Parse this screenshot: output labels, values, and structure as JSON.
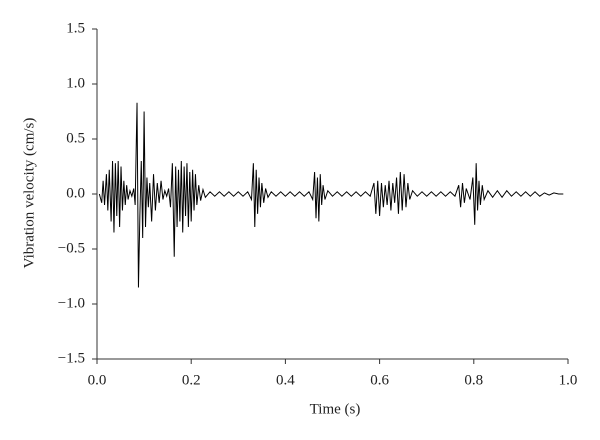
{
  "chart_data": {
    "type": "line",
    "x_label": "Time (s)",
    "y_label": "Vibration velocity (cm/s)",
    "color": "#000000",
    "x": [
      0.005,
      0.01,
      0.013,
      0.016,
      0.02,
      0.023,
      0.026,
      0.03,
      0.033,
      0.036,
      0.039,
      0.042,
      0.045,
      0.048,
      0.051,
      0.054,
      0.057,
      0.06,
      0.063,
      0.066,
      0.07,
      0.074,
      0.078,
      0.081,
      0.085,
      0.088,
      0.091,
      0.094,
      0.097,
      0.1,
      0.103,
      0.106,
      0.109,
      0.112,
      0.116,
      0.12,
      0.124,
      0.128,
      0.132,
      0.136,
      0.14,
      0.144,
      0.148,
      0.152,
      0.156,
      0.16,
      0.164,
      0.167,
      0.17,
      0.173,
      0.176,
      0.179,
      0.182,
      0.185,
      0.188,
      0.191,
      0.194,
      0.197,
      0.2,
      0.203,
      0.206,
      0.209,
      0.212,
      0.216,
      0.22,
      0.225,
      0.23,
      0.24,
      0.25,
      0.26,
      0.27,
      0.28,
      0.29,
      0.3,
      0.31,
      0.32,
      0.328,
      0.332,
      0.335,
      0.338,
      0.341,
      0.344,
      0.347,
      0.35,
      0.354,
      0.358,
      0.363,
      0.37,
      0.38,
      0.39,
      0.4,
      0.41,
      0.42,
      0.43,
      0.44,
      0.45,
      0.458,
      0.462,
      0.465,
      0.468,
      0.471,
      0.474,
      0.477,
      0.48,
      0.484,
      0.49,
      0.5,
      0.51,
      0.52,
      0.53,
      0.54,
      0.55,
      0.56,
      0.57,
      0.58,
      0.588,
      0.592,
      0.596,
      0.6,
      0.604,
      0.608,
      0.612,
      0.616,
      0.62,
      0.624,
      0.628,
      0.632,
      0.636,
      0.64,
      0.644,
      0.648,
      0.652,
      0.656,
      0.66,
      0.664,
      0.67,
      0.68,
      0.69,
      0.7,
      0.71,
      0.72,
      0.73,
      0.74,
      0.75,
      0.76,
      0.768,
      0.772,
      0.776,
      0.78,
      0.784,
      0.792,
      0.798,
      0.802,
      0.805,
      0.808,
      0.811,
      0.814,
      0.818,
      0.822,
      0.83,
      0.84,
      0.85,
      0.86,
      0.87,
      0.88,
      0.89,
      0.9,
      0.91,
      0.92,
      0.93,
      0.94,
      0.95,
      0.96,
      0.97,
      0.98,
      0.99
    ],
    "values": [
      0,
      -0.08,
      0.12,
      -0.1,
      0.18,
      -0.15,
      0.22,
      -0.25,
      0.3,
      -0.35,
      0.28,
      -0.2,
      0.3,
      -0.3,
      0.25,
      -0.15,
      0.12,
      -0.1,
      0.08,
      -0.05,
      0.03,
      -0.02,
      0.05,
      -0.1,
      0.83,
      -0.85,
      -0.2,
      0.3,
      -0.4,
      0.75,
      -0.3,
      0.15,
      -0.12,
      0.1,
      -0.25,
      0.18,
      -0.15,
      0.1,
      -0.08,
      0.12,
      -0.05,
      0.03,
      -0.02,
      0.05,
      -0.12,
      0.28,
      -0.57,
      0.25,
      -0.3,
      0.22,
      -0.25,
      0.3,
      -0.35,
      0.25,
      -0.2,
      0.28,
      -0.3,
      0.2,
      -0.25,
      0.22,
      -0.15,
      0.18,
      -0.1,
      0.08,
      -0.06,
      0.04,
      -0.03,
      0.02,
      -0.02,
      0.02,
      -0.02,
      0.02,
      -0.02,
      0.02,
      -0.02,
      0.02,
      -0.05,
      0.28,
      -0.3,
      0.22,
      -0.18,
      0.15,
      -0.12,
      0.1,
      -0.08,
      0.05,
      -0.03,
      0.02,
      -0.02,
      0.02,
      -0.02,
      0.02,
      -0.02,
      0.02,
      -0.02,
      0.02,
      -0.05,
      0.2,
      -0.22,
      0.15,
      -0.25,
      0.18,
      -0.1,
      0.08,
      -0.05,
      0.03,
      -0.02,
      0.02,
      -0.02,
      0.02,
      -0.02,
      0.02,
      -0.02,
      0.02,
      -0.02,
      0.1,
      -0.18,
      0.12,
      -0.2,
      0.1,
      -0.12,
      0.08,
      -0.1,
      0.12,
      -0.15,
      0.1,
      -0.08,
      0.15,
      -0.18,
      0.2,
      -0.15,
      0.18,
      -0.12,
      0.1,
      -0.05,
      0.03,
      -0.02,
      0.02,
      -0.02,
      0.02,
      -0.02,
      0.02,
      -0.02,
      0.02,
      -0.02,
      0.08,
      -0.12,
      0.1,
      -0.08,
      0.05,
      -0.05,
      0.15,
      -0.28,
      0.28,
      -0.15,
      0.12,
      -0.1,
      0.08,
      -0.05,
      0.03,
      -0.03,
      0.03,
      -0.03,
      0.03,
      -0.02,
      0.02,
      -0.02,
      0.02,
      -0.02,
      0.02,
      -0.02,
      0.01,
      -0.01,
      0.01,
      0,
      0
    ],
    "xlim": [
      0,
      1
    ],
    "xticks": [
      {
        "value": 0,
        "label": "0.0"
      },
      0.2,
      0.4,
      0.6,
      0.8,
      {
        "value": 1,
        "label": "1.0"
      }
    ],
    "ylim": [
      -1.5,
      1.5
    ],
    "yticks": [
      {
        "value": -1.5,
        "label": "−1.5"
      },
      {
        "value": -1,
        "label": "−1.0"
      },
      {
        "value": -0.5,
        "label": "−0.5"
      },
      {
        "value": 0,
        "label": "0.0"
      },
      0.5,
      {
        "value": 1,
        "label": "1.0"
      },
      1.5
    ]
  }
}
